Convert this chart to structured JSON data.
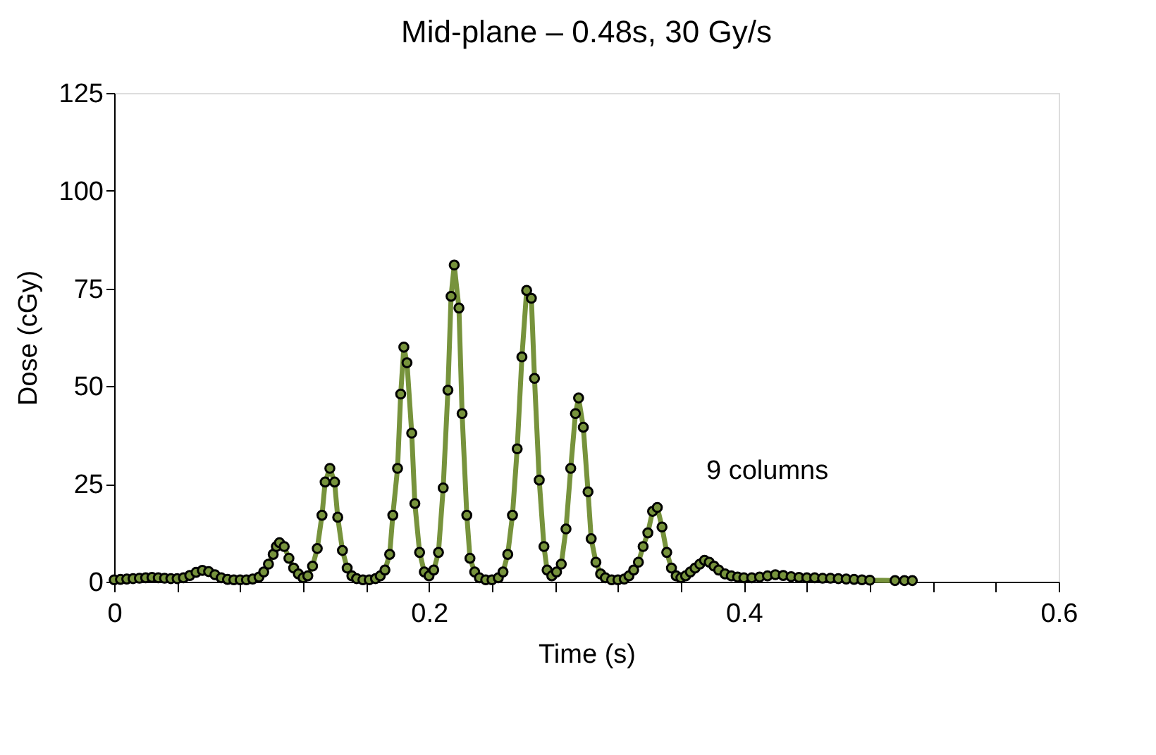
{
  "chart_data": {
    "type": "line",
    "title": "Mid-plane – 0.48s, 30 Gy/s",
    "xlabel": "Time (s)",
    "ylabel": "Dose (cGy)",
    "annotations": [
      "9 columns"
    ],
    "xlim": [
      0,
      0.6
    ],
    "ylim": [
      0,
      125
    ],
    "xticks": [
      0,
      {
        "value": 0.04,
        "label": null
      },
      {
        "value": 0.08,
        "label": null
      },
      {
        "value": 0.12,
        "label": null
      },
      {
        "value": 0.16,
        "label": null
      },
      0.2,
      {
        "value": 0.24,
        "label": null
      },
      {
        "value": 0.28,
        "label": null
      },
      {
        "value": 0.32,
        "label": null
      },
      {
        "value": 0.36,
        "label": null
      },
      0.4,
      {
        "value": 0.44,
        "label": null
      },
      {
        "value": 0.48,
        "label": null
      },
      {
        "value": 0.52,
        "label": null
      },
      {
        "value": 0.56,
        "label": null
      },
      0.6
    ],
    "yticks": [
      0,
      25,
      50,
      75,
      100,
      125
    ],
    "grid": false,
    "marker": "circle",
    "line_style": "solid",
    "series": [
      {
        "color": "#77933c",
        "x": [
          0,
          0.004,
          0.008,
          0.012,
          0.016,
          0.02,
          0.024,
          0.028,
          0.032,
          0.036,
          0.04,
          0.044,
          0.048,
          0.052,
          0.056,
          0.06,
          0.064,
          0.068,
          0.072,
          0.076,
          0.08,
          0.084,
          0.088,
          0.092,
          0.095,
          0.098,
          0.101,
          0.103,
          0.105,
          0.108,
          0.111,
          0.114,
          0.117,
          0.12,
          0.123,
          0.126,
          0.129,
          0.132,
          0.134,
          0.137,
          0.14,
          0.142,
          0.145,
          0.148,
          0.151,
          0.154,
          0.158,
          0.162,
          0.166,
          0.169,
          0.172,
          0.175,
          0.177,
          0.18,
          0.182,
          0.184,
          0.186,
          0.189,
          0.191,
          0.194,
          0.197,
          0.2,
          0.203,
          0.206,
          0.209,
          0.212,
          0.214,
          0.216,
          0.219,
          0.221,
          0.224,
          0.226,
          0.229,
          0.232,
          0.236,
          0.24,
          0.244,
          0.247,
          0.25,
          0.253,
          0.256,
          0.259,
          0.262,
          0.265,
          0.267,
          0.27,
          0.273,
          0.275,
          0.278,
          0.281,
          0.284,
          0.287,
          0.29,
          0.293,
          0.295,
          0.298,
          0.301,
          0.303,
          0.306,
          0.309,
          0.312,
          0.316,
          0.32,
          0.324,
          0.327,
          0.33,
          0.333,
          0.336,
          0.339,
          0.342,
          0.345,
          0.348,
          0.351,
          0.354,
          0.357,
          0.36,
          0.363,
          0.366,
          0.369,
          0.372,
          0.375,
          0.378,
          0.381,
          0.384,
          0.388,
          0.392,
          0.396,
          0.4,
          0.405,
          0.41,
          0.415,
          0.42,
          0.425,
          0.43,
          0.435,
          0.44,
          0.445,
          0.45,
          0.455,
          0.46,
          0.465,
          0.47,
          0.475,
          0.48,
          0.496,
          0.502,
          0.507
        ],
        "values": [
          0.5,
          0.6,
          0.7,
          0.8,
          0.9,
          1.0,
          1.1,
          1.0,
          0.9,
          0.8,
          0.8,
          1.0,
          1.6,
          2.4,
          2.9,
          2.6,
          1.8,
          1.0,
          0.6,
          0.5,
          0.5,
          0.5,
          0.7,
          1.2,
          2.5,
          4.5,
          7,
          9,
          10,
          9,
          6,
          3.5,
          2,
          1,
          1.5,
          4,
          8.5,
          17,
          25.5,
          29,
          25.5,
          16.5,
          8,
          3.5,
          1.5,
          0.8,
          0.5,
          0.5,
          0.8,
          1.5,
          3,
          7,
          17,
          29,
          48,
          60,
          56,
          38,
          20,
          7.5,
          2.5,
          1.5,
          3,
          7.5,
          24,
          49,
          73,
          81,
          70,
          43,
          17,
          6,
          2.5,
          1,
          0.5,
          0.5,
          1,
          2.5,
          7,
          17,
          34,
          57.5,
          74.5,
          72.5,
          52,
          26,
          9,
          3,
          1.5,
          2.5,
          4.5,
          13.5,
          29,
          43,
          47,
          39.5,
          23,
          11,
          5,
          2,
          1,
          0.5,
          0.5,
          0.7,
          1.5,
          3,
          5,
          9,
          12.5,
          18,
          19,
          14,
          7.5,
          3.5,
          1.5,
          1,
          1.5,
          2.5,
          3.5,
          4.5,
          5.5,
          5,
          4,
          3,
          2,
          1.5,
          1.2,
          1,
          1,
          1.2,
          1.5,
          1.8,
          1.6,
          1.3,
          1.1,
          1,
          1,
          0.9,
          0.9,
          0.8,
          0.7,
          0.6,
          0.5,
          0.4,
          0.3,
          0.3,
          0.3
        ]
      }
    ]
  }
}
